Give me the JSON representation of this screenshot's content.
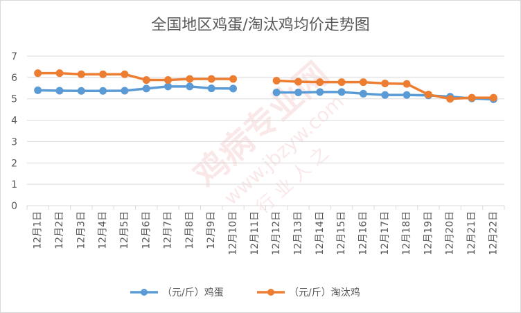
{
  "chart_data": {
    "type": "line",
    "title": "全国地区鸡蛋/淘汰鸡均价走势图",
    "categories": [
      "12月1日",
      "12月2日",
      "12月3日",
      "12月4日",
      "12月5日",
      "12月6日",
      "12月7日",
      "12月8日",
      "12月9日",
      "12月10日",
      "12月11日",
      "12月12日",
      "12月13日",
      "12月14日",
      "12月15日",
      "12月16日",
      "12月17日",
      "12月18日",
      "12月19日",
      "12月20日",
      "12月21日",
      "12月22日"
    ],
    "ylim": [
      0,
      7
    ],
    "yticks": [
      0,
      1,
      2,
      3,
      4,
      5,
      6,
      7
    ],
    "grid": true,
    "legend_position": "bottom",
    "series": [
      {
        "name": "（元/斤）鸡蛋",
        "color": "#5b9bd5",
        "values": [
          5.4,
          5.38,
          5.37,
          5.37,
          5.38,
          5.48,
          5.58,
          5.58,
          5.49,
          5.48,
          null,
          5.3,
          5.3,
          5.32,
          5.32,
          5.24,
          5.18,
          5.18,
          5.16,
          5.1,
          5.02,
          4.98
        ]
      },
      {
        "name": "（元/斤）淘汰鸡",
        "color": "#ed7d31",
        "values": [
          6.2,
          6.2,
          6.15,
          6.15,
          6.15,
          5.88,
          5.88,
          5.93,
          5.93,
          5.93,
          null,
          5.85,
          5.8,
          5.78,
          5.78,
          5.78,
          5.72,
          5.7,
          5.2,
          5.0,
          5.05,
          5.05
        ]
      }
    ]
  },
  "watermark": {
    "logo_text": "鸡病专业网",
    "url_text": "www.jbzyw.com",
    "slogan_text": "行 业 人 之"
  }
}
